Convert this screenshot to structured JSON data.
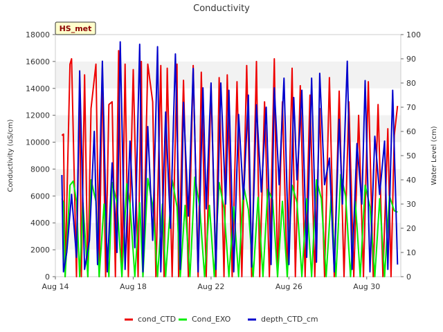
{
  "chart_data": {
    "type": "line",
    "title": "Conductivity",
    "badge": "HS_met",
    "ylabel": "Conductivity (uS/cm)",
    "y2label": "Water Level (cm)",
    "ylim": [
      0,
      18000
    ],
    "y2lim": [
      0,
      100
    ],
    "yticks": [
      0,
      2000,
      4000,
      6000,
      8000,
      10000,
      12000,
      14000,
      16000,
      18000
    ],
    "y2ticks": [
      0,
      10,
      20,
      30,
      40,
      50,
      60,
      70,
      80,
      90,
      100
    ],
    "ytick_labels": [
      "0",
      "2000",
      "4000",
      "6000",
      "8000",
      "10000",
      "12000",
      "14000",
      "16000",
      "18000"
    ],
    "y2tick_labels": [
      "0",
      "10",
      "20",
      "30",
      "40",
      "50",
      "60",
      "70",
      "80",
      "90",
      "100"
    ],
    "xlim": [
      "2023-08-14",
      "2023-08-31T18:00"
    ],
    "xticks": [
      "2023-08-14",
      "2023-08-18",
      "2023-08-22",
      "2023-08-26",
      "2023-08-30"
    ],
    "xtick_labels": [
      "Aug 14",
      "Aug 18",
      "Aug 22",
      "Aug 26",
      "Aug 30"
    ],
    "grid": "horizontal bands",
    "legend_position": "bottom",
    "series": [
      {
        "name": "cond_CTD",
        "axis": "left",
        "color": "#ee0000",
        "x": [
          "2023-08-14T08:00",
          "2023-08-14T10:00",
          "2023-08-14T12:00",
          "2023-08-14T18:00",
          "2023-08-14T20:00",
          "2023-08-15T02:00",
          "2023-08-15T06:00",
          "2023-08-15T08:00",
          "2023-08-15T12:00",
          "2023-08-15T16:00",
          "2023-08-15T20:00",
          "2023-08-16T02:00",
          "2023-08-16T06:00",
          "2023-08-16T10:00",
          "2023-08-16T14:00",
          "2023-08-16T18:00",
          "2023-08-16T22:00",
          "2023-08-17T02:00",
          "2023-08-17T06:00",
          "2023-08-17T10:00",
          "2023-08-17T14:00",
          "2023-08-17T18:00",
          "2023-08-18T00:00",
          "2023-08-18T06:00",
          "2023-08-18T10:00",
          "2023-08-18T12:00",
          "2023-08-18T18:00",
          "2023-08-19T00:00",
          "2023-08-19T04:00",
          "2023-08-19T10:00",
          "2023-08-19T14:00",
          "2023-08-19T18:00",
          "2023-08-20T00:00",
          "2023-08-20T06:00",
          "2023-08-20T08:00",
          "2023-08-20T14:00",
          "2023-08-20T20:00",
          "2023-08-21T02:00",
          "2023-08-21T08:00",
          "2023-08-21T12:00",
          "2023-08-21T18:00",
          "2023-08-22T00:00",
          "2023-08-22T06:00",
          "2023-08-22T10:00",
          "2023-08-22T16:00",
          "2023-08-22T20:00",
          "2023-08-23T02:00",
          "2023-08-23T08:00",
          "2023-08-23T14:00",
          "2023-08-23T20:00",
          "2023-08-24T02:00",
          "2023-08-24T08:00",
          "2023-08-24T12:00",
          "2023-08-24T18:00",
          "2023-08-25T00:00",
          "2023-08-25T06:00",
          "2023-08-25T10:00",
          "2023-08-25T16:00",
          "2023-08-25T22:00",
          "2023-08-26T04:00",
          "2023-08-26T08:00",
          "2023-08-26T14:00",
          "2023-08-26T20:00",
          "2023-08-27T02:00",
          "2023-08-27T08:00",
          "2023-08-27T14:00",
          "2023-08-27T20:00",
          "2023-08-28T02:00",
          "2023-08-28T08:00",
          "2023-08-28T14:00",
          "2023-08-28T20:00",
          "2023-08-29T02:00",
          "2023-08-29T08:00",
          "2023-08-29T14:00",
          "2023-08-29T20:00",
          "2023-08-30T02:00",
          "2023-08-30T08:00",
          "2023-08-30T14:00",
          "2023-08-30T20:00",
          "2023-08-31T02:00",
          "2023-08-31T06:00",
          "2023-08-31T10:00",
          "2023-08-31T14:00"
        ],
        "values": [
          10500,
          10600,
          0,
          15800,
          16200,
          0,
          14500,
          0,
          15000,
          0,
          12500,
          15800,
          0,
          15500,
          0,
          12800,
          13000,
          0,
          16800,
          0,
          15800,
          0,
          15400,
          0,
          16000,
          0,
          15800,
          13000,
          0,
          15700,
          0,
          15500,
          0,
          15800,
          0,
          14600,
          0,
          15700,
          0,
          15200,
          0,
          14200,
          0,
          14800,
          0,
          15000,
          0,
          14500,
          0,
          15700,
          0,
          16000,
          0,
          13000,
          0,
          16200,
          0,
          13000,
          0,
          15500,
          0,
          14200,
          0,
          13500,
          0,
          12500,
          0,
          14800,
          0,
          13800,
          0,
          13000,
          0,
          12000,
          0,
          14500,
          0,
          12800,
          0,
          11000,
          0,
          10500,
          12700
        ]
      },
      {
        "name": "Cond_EXO",
        "axis": "left",
        "color": "#00ee00",
        "x": [
          "2023-08-14T08:00",
          "2023-08-14T10:00",
          "2023-08-14T12:00",
          "2023-08-14T18:00",
          "2023-08-14T22:00",
          "2023-08-15T02:00",
          "2023-08-15T06:00",
          "2023-08-15T10:00",
          "2023-08-15T16:00",
          "2023-08-15T20:00",
          "2023-08-16T02:00",
          "2023-08-16T06:00",
          "2023-08-16T12:00",
          "2023-08-16T18:00",
          "2023-08-16T22:00",
          "2023-08-17T04:00",
          "2023-08-17T10:00",
          "2023-08-17T16:00",
          "2023-08-17T20:00",
          "2023-08-18T02:00",
          "2023-08-18T08:00",
          "2023-08-18T12:00",
          "2023-08-18T18:00",
          "2023-08-19T00:00",
          "2023-08-19T06:00",
          "2023-08-19T12:00",
          "2023-08-19T16:00",
          "2023-08-20T00:00",
          "2023-08-20T06:00",
          "2023-08-20T10:00",
          "2023-08-20T16:00",
          "2023-08-20T22:00",
          "2023-08-21T04:00",
          "2023-08-21T10:00",
          "2023-08-21T16:00",
          "2023-08-21T22:00",
          "2023-08-22T04:00",
          "2023-08-22T10:00",
          "2023-08-22T16:00",
          "2023-08-22T22:00",
          "2023-08-23T04:00",
          "2023-08-23T10:00",
          "2023-08-23T16:00",
          "2023-08-23T22:00",
          "2023-08-24T04:00",
          "2023-08-24T10:00",
          "2023-08-24T16:00",
          "2023-08-24T22:00",
          "2023-08-25T04:00",
          "2023-08-25T10:00",
          "2023-08-25T16:00",
          "2023-08-25T22:00",
          "2023-08-26T04:00",
          "2023-08-26T10:00",
          "2023-08-26T16:00",
          "2023-08-26T22:00",
          "2023-08-27T04:00",
          "2023-08-27T10:00",
          "2023-08-27T16:00",
          "2023-08-27T22:00",
          "2023-08-28T04:00",
          "2023-08-28T10:00",
          "2023-08-28T16:00",
          "2023-08-28T22:00",
          "2023-08-29T04:00",
          "2023-08-29T10:00",
          "2023-08-29T16:00",
          "2023-08-29T22:00",
          "2023-08-30T04:00",
          "2023-08-30T10:00",
          "2023-08-30T16:00",
          "2023-08-30T22:00",
          "2023-08-31T04:00",
          "2023-08-31T10:00",
          "2023-08-31T14:00"
        ],
        "values": [
          5800,
          5500,
          0,
          6800,
          7100,
          5600,
          0,
          5500,
          0,
          7200,
          5600,
          0,
          5400,
          0,
          7000,
          5500,
          0,
          6900,
          5400,
          0,
          5500,
          0,
          7300,
          5300,
          0,
          5400,
          0,
          7200,
          5200,
          0,
          5300,
          0,
          7400,
          5200,
          0,
          5300,
          0,
          7000,
          5100,
          0,
          5200,
          0,
          6800,
          5000,
          0,
          5900,
          0,
          6500,
          5700,
          0,
          5600,
          0,
          6800,
          5500,
          0,
          5800,
          0,
          7200,
          5800,
          0,
          5900,
          0,
          7600,
          6000,
          0,
          5600,
          0,
          6800,
          5200,
          0,
          5800,
          0,
          6000,
          4900,
          4800
        ]
      },
      {
        "name": "depth_CTD_cm",
        "axis": "right",
        "color": "#0000cc",
        "x": [
          "2023-08-14T08:00",
          "2023-08-14T10:00",
          "2023-08-14T14:00",
          "2023-08-14T20:00",
          "2023-08-15T02:00",
          "2023-08-15T06:00",
          "2023-08-15T12:00",
          "2023-08-15T18:00",
          "2023-08-16T00:00",
          "2023-08-16T04:00",
          "2023-08-16T10:00",
          "2023-08-16T16:00",
          "2023-08-16T22:00",
          "2023-08-17T04:00",
          "2023-08-17T08:00",
          "2023-08-17T14:00",
          "2023-08-17T20:00",
          "2023-08-18T02:00",
          "2023-08-18T08:00",
          "2023-08-18T12:00",
          "2023-08-18T18:00",
          "2023-08-19T00:00",
          "2023-08-19T06:00",
          "2023-08-19T10:00",
          "2023-08-19T16:00",
          "2023-08-19T22:00",
          "2023-08-20T04:00",
          "2023-08-20T10:00",
          "2023-08-20T14:00",
          "2023-08-20T20:00",
          "2023-08-21T02:00",
          "2023-08-21T08:00",
          "2023-08-21T14:00",
          "2023-08-21T18:00",
          "2023-08-22T00:00",
          "2023-08-22T06:00",
          "2023-08-22T12:00",
          "2023-08-22T18:00",
          "2023-08-22T22:00",
          "2023-08-23T04:00",
          "2023-08-23T10:00",
          "2023-08-23T16:00",
          "2023-08-23T22:00",
          "2023-08-24T02:00",
          "2023-08-24T08:00",
          "2023-08-24T14:00",
          "2023-08-24T20:00",
          "2023-08-25T02:00",
          "2023-08-25T06:00",
          "2023-08-25T12:00",
          "2023-08-25T18:00",
          "2023-08-26T00:00",
          "2023-08-26T06:00",
          "2023-08-26T10:00",
          "2023-08-26T16:00",
          "2023-08-26T22:00",
          "2023-08-27T04:00",
          "2023-08-27T10:00",
          "2023-08-27T14:00",
          "2023-08-27T20:00",
          "2023-08-28T02:00",
          "2023-08-28T08:00",
          "2023-08-28T14:00",
          "2023-08-28T18:00",
          "2023-08-29T00:00",
          "2023-08-29T06:00",
          "2023-08-29T12:00",
          "2023-08-29T18:00",
          "2023-08-29T22:00",
          "2023-08-30T04:00",
          "2023-08-30T10:00",
          "2023-08-30T16:00",
          "2023-08-30T22:00",
          "2023-08-31T02:00",
          "2023-08-31T08:00",
          "2023-08-31T14:00"
        ],
        "values": [
          42,
          2,
          10,
          34,
          8,
          85,
          3,
          15,
          60,
          5,
          89,
          2,
          47,
          10,
          97,
          3,
          56,
          12,
          96,
          2,
          62,
          15,
          95,
          2,
          68,
          20,
          92,
          3,
          72,
          25,
          86,
          2,
          78,
          28,
          80,
          3,
          80,
          30,
          77,
          2,
          67,
          32,
          75,
          4,
          71,
          35,
          70,
          5,
          78,
          38,
          82,
          5,
          74,
          40,
          77,
          8,
          82,
          6,
          84,
          38,
          49,
          2,
          65,
          30,
          89,
          3,
          55,
          30,
          81,
          2,
          58,
          34,
          56,
          3,
          77,
          5
        ]
      }
    ]
  }
}
